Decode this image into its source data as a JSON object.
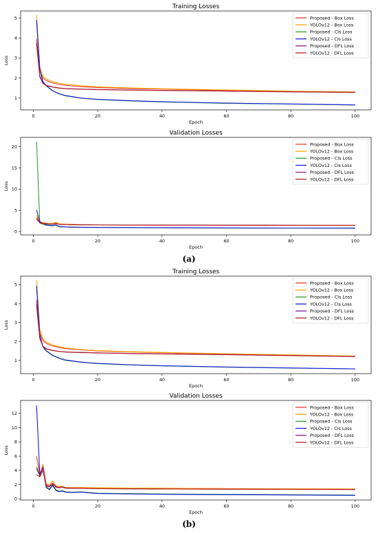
{
  "captions": [
    "(a)",
    "(b)"
  ],
  "chart_data": [
    {
      "type": "line",
      "title": "Training Losses",
      "xlabel": "Epoch",
      "ylabel": "Loss",
      "xlim": [
        -3.95,
        104.95
      ],
      "ylim": [
        0.4,
        5.35
      ],
      "xticks": [
        0,
        20,
        40,
        60,
        80,
        100
      ],
      "yticks": [
        1,
        2,
        3,
        4,
        5
      ],
      "legend": "top-right",
      "series": [
        {
          "name": "Proposed - Box Loss",
          "color": "#e8382a",
          "x": [
            1,
            2,
            3,
            4,
            6,
            8,
            10,
            15,
            20,
            30,
            40,
            60,
            80,
            100
          ],
          "y": [
            3.95,
            2.35,
            2.0,
            1.87,
            1.75,
            1.68,
            1.63,
            1.56,
            1.52,
            1.47,
            1.44,
            1.38,
            1.33,
            1.29
          ]
        },
        {
          "name": "YOLOv12 - Box Loss",
          "color": "#ffa500",
          "x": [
            1,
            2,
            3,
            4,
            6,
            8,
            10,
            15,
            20,
            30,
            40,
            60,
            80,
            100
          ],
          "y": [
            5.15,
            2.55,
            2.1,
            1.95,
            1.82,
            1.74,
            1.69,
            1.61,
            1.56,
            1.5,
            1.46,
            1.4,
            1.34,
            1.3
          ]
        },
        {
          "name": "Proposed - Cls Loss",
          "color": "#2ca02c",
          "x": [
            1,
            2,
            3,
            4,
            6,
            8,
            10,
            15,
            20,
            30,
            40,
            60,
            80,
            100
          ],
          "y": [
            4.85,
            2.4,
            1.8,
            1.6,
            1.35,
            1.2,
            1.1,
            0.98,
            0.92,
            0.85,
            0.8,
            0.73,
            0.69,
            0.64
          ]
        },
        {
          "name": "YOLOv12 - Cls Loss",
          "color": "#1a1adc",
          "x": [
            1,
            2,
            3,
            4,
            6,
            8,
            10,
            15,
            20,
            30,
            40,
            60,
            80,
            100
          ],
          "y": [
            4.9,
            2.45,
            1.82,
            1.62,
            1.36,
            1.21,
            1.12,
            0.99,
            0.93,
            0.86,
            0.81,
            0.74,
            0.7,
            0.65
          ]
        },
        {
          "name": "Proposed - DFL Loss",
          "color": "#8b1a8b",
          "x": [
            1,
            2,
            3,
            4,
            6,
            8,
            10,
            15,
            20,
            30,
            40,
            60,
            80,
            100
          ],
          "y": [
            3.75,
            2.1,
            1.75,
            1.63,
            1.55,
            1.5,
            1.47,
            1.44,
            1.42,
            1.4,
            1.38,
            1.35,
            1.31,
            1.28
          ]
        },
        {
          "name": "YOLOv12 - DFL Loss",
          "color": "#b22222",
          "x": [
            1,
            2,
            3,
            4,
            6,
            8,
            10,
            15,
            20,
            30,
            40,
            60,
            80,
            100
          ],
          "y": [
            3.7,
            2.05,
            1.72,
            1.61,
            1.54,
            1.49,
            1.46,
            1.43,
            1.41,
            1.39,
            1.37,
            1.34,
            1.3,
            1.27
          ]
        }
      ]
    },
    {
      "type": "line",
      "title": "Validation Losses",
      "xlabel": "Epoch",
      "ylabel": "Loss",
      "xlim": [
        -3.95,
        104.95
      ],
      "ylim": [
        -0.8,
        22.2
      ],
      "xticks": [
        0,
        20,
        40,
        60,
        80,
        100
      ],
      "yticks": [
        0,
        5,
        10,
        15,
        20
      ],
      "legend": "top-right",
      "series": [
        {
          "name": "Proposed - Box Loss",
          "color": "#e8382a",
          "x": [
            1,
            2,
            3,
            4,
            5,
            6,
            7,
            8,
            10,
            12,
            15,
            20,
            40,
            60,
            80,
            100
          ],
          "y": [
            3.4,
            2.3,
            2.0,
            1.9,
            1.85,
            1.8,
            2.0,
            1.75,
            1.7,
            1.65,
            1.6,
            1.55,
            1.5,
            1.45,
            1.43,
            1.42
          ]
        },
        {
          "name": "YOLOv12 - Box Loss",
          "color": "#ffa500",
          "x": [
            1,
            2,
            3,
            4,
            5,
            6,
            7,
            8,
            10,
            12,
            15,
            20,
            40,
            60,
            80,
            100
          ],
          "y": [
            3.9,
            2.4,
            2.1,
            2.0,
            1.9,
            1.9,
            2.2,
            1.8,
            1.75,
            1.7,
            1.62,
            1.57,
            1.5,
            1.46,
            1.44,
            1.43
          ]
        },
        {
          "name": "Proposed - Cls Loss",
          "color": "#2ca02c",
          "x": [
            1,
            2,
            3,
            4,
            5,
            6,
            7,
            8,
            10,
            12,
            15,
            20,
            40,
            60,
            80,
            100
          ],
          "y": [
            21.2,
            2.0,
            1.7,
            1.5,
            1.4,
            1.3,
            1.5,
            1.1,
            1.05,
            1.0,
            0.95,
            0.9,
            0.85,
            0.8,
            0.78,
            0.75
          ]
        },
        {
          "name": "YOLOv12 - Cls Loss",
          "color": "#1a1adc",
          "x": [
            1,
            2,
            3,
            4,
            5,
            6,
            7,
            8,
            10,
            12,
            15,
            20,
            40,
            60,
            80,
            100
          ],
          "y": [
            5.1,
            2.3,
            1.9,
            1.6,
            1.5,
            1.4,
            1.6,
            1.2,
            1.1,
            1.05,
            1.0,
            0.95,
            0.9,
            0.85,
            0.82,
            0.8
          ]
        },
        {
          "name": "Proposed - DFL Loss",
          "color": "#8b1a8b",
          "x": [
            1,
            2,
            3,
            4,
            5,
            6,
            7,
            8,
            10,
            12,
            15,
            20,
            40,
            60,
            80,
            100
          ],
          "y": [
            3.0,
            2.1,
            1.95,
            1.85,
            1.8,
            1.75,
            1.9,
            1.7,
            1.65,
            1.62,
            1.6,
            1.56,
            1.52,
            1.5,
            1.48,
            1.46
          ]
        },
        {
          "name": "YOLOv12 - DFL Loss",
          "color": "#b22222",
          "x": [
            1,
            2,
            3,
            4,
            5,
            6,
            7,
            8,
            10,
            12,
            15,
            20,
            40,
            60,
            80,
            100
          ],
          "y": [
            2.9,
            2.05,
            1.9,
            1.8,
            1.78,
            1.72,
            1.85,
            1.68,
            1.63,
            1.6,
            1.58,
            1.55,
            1.51,
            1.49,
            1.47,
            1.45
          ]
        }
      ]
    },
    {
      "type": "line",
      "title": "Training Losses",
      "xlabel": "Epoch",
      "ylabel": "Loss",
      "xlim": [
        -3.95,
        104.95
      ],
      "ylim": [
        0.3,
        5.45
      ],
      "xticks": [
        0,
        20,
        40,
        60,
        80,
        100
      ],
      "yticks": [
        1,
        2,
        3,
        4,
        5
      ],
      "legend": "top-right",
      "series": [
        {
          "name": "Proposed - Box Loss",
          "color": "#e8382a",
          "x": [
            1,
            2,
            3,
            4,
            6,
            8,
            10,
            15,
            20,
            30,
            40,
            60,
            80,
            100
          ],
          "y": [
            4.2,
            2.45,
            2.05,
            1.9,
            1.76,
            1.68,
            1.62,
            1.55,
            1.5,
            1.45,
            1.41,
            1.34,
            1.28,
            1.22
          ]
        },
        {
          "name": "YOLOv12 - Box Loss",
          "color": "#ffa500",
          "x": [
            1,
            2,
            3,
            4,
            6,
            8,
            10,
            15,
            20,
            30,
            40,
            60,
            80,
            100
          ],
          "y": [
            5.25,
            2.65,
            2.15,
            1.98,
            1.82,
            1.72,
            1.66,
            1.57,
            1.52,
            1.46,
            1.42,
            1.35,
            1.29,
            1.23
          ]
        },
        {
          "name": "Proposed - Cls Loss",
          "color": "#2ca02c",
          "x": [
            1,
            2,
            3,
            4,
            6,
            8,
            10,
            15,
            20,
            30,
            40,
            60,
            80,
            100
          ],
          "y": [
            4.9,
            2.3,
            1.7,
            1.5,
            1.25,
            1.1,
            1.0,
            0.9,
            0.83,
            0.76,
            0.71,
            0.64,
            0.59,
            0.55
          ]
        },
        {
          "name": "YOLOv12 - Cls Loss",
          "color": "#1a1adc",
          "x": [
            1,
            2,
            3,
            4,
            6,
            8,
            10,
            15,
            20,
            30,
            40,
            60,
            80,
            100
          ],
          "y": [
            4.95,
            2.35,
            1.72,
            1.52,
            1.27,
            1.12,
            1.02,
            0.91,
            0.84,
            0.77,
            0.72,
            0.65,
            0.6,
            0.55
          ]
        },
        {
          "name": "Proposed - DFL Loss",
          "color": "#8b1a8b",
          "x": [
            1,
            2,
            3,
            4,
            6,
            8,
            10,
            15,
            20,
            30,
            40,
            60,
            80,
            100
          ],
          "y": [
            4.0,
            2.2,
            1.75,
            1.62,
            1.53,
            1.48,
            1.45,
            1.42,
            1.4,
            1.37,
            1.35,
            1.31,
            1.26,
            1.21
          ]
        },
        {
          "name": "YOLOv12 - DFL Loss",
          "color": "#b22222",
          "x": [
            1,
            2,
            3,
            4,
            6,
            8,
            10,
            15,
            20,
            30,
            40,
            60,
            80,
            100
          ],
          "y": [
            3.9,
            2.15,
            1.72,
            1.6,
            1.52,
            1.47,
            1.44,
            1.41,
            1.39,
            1.36,
            1.34,
            1.3,
            1.25,
            1.2
          ]
        }
      ]
    },
    {
      "type": "line",
      "title": "Validation Losses",
      "xlabel": "Epoch",
      "ylabel": "Loss",
      "xlim": [
        -3.95,
        104.95
      ],
      "ylim": [
        -0.15,
        13.8
      ],
      "xticks": [
        0,
        20,
        40,
        60,
        80,
        100
      ],
      "yticks": [
        0,
        2,
        4,
        6,
        8,
        10,
        12
      ],
      "legend": "top-right",
      "series": [
        {
          "name": "Proposed - Box Loss",
          "color": "#e8382a",
          "x": [
            1,
            2,
            3,
            4,
            5,
            6,
            7,
            8,
            9,
            10,
            12,
            15,
            20,
            40,
            60,
            80,
            100
          ],
          "y": [
            6.0,
            3.5,
            4.8,
            2.0,
            2.0,
            2.5,
            1.8,
            1.7,
            1.8,
            1.6,
            1.6,
            1.6,
            1.55,
            1.5,
            1.45,
            1.42,
            1.4
          ]
        },
        {
          "name": "YOLOv12 - Box Loss",
          "color": "#ffa500",
          "x": [
            1,
            2,
            3,
            4,
            5,
            6,
            7,
            8,
            9,
            10,
            12,
            15,
            20,
            40,
            60,
            80,
            100
          ],
          "y": [
            4.6,
            3.4,
            4.7,
            2.1,
            2.0,
            2.5,
            1.9,
            1.7,
            1.8,
            1.6,
            1.6,
            1.6,
            1.55,
            1.5,
            1.45,
            1.42,
            1.4
          ]
        },
        {
          "name": "Proposed - Cls Loss",
          "color": "#2ca02c",
          "x": [
            1,
            2,
            3,
            4,
            5,
            6,
            7,
            8,
            9,
            10,
            12,
            15,
            20,
            40,
            60,
            80,
            100
          ],
          "y": [
            4.2,
            3.2,
            4.4,
            1.7,
            1.4,
            2.0,
            1.3,
            1.1,
            1.2,
            1.0,
            0.95,
            1.0,
            0.8,
            0.7,
            0.65,
            0.6,
            0.55
          ]
        },
        {
          "name": "YOLOv12 - Cls Loss",
          "color": "#1a1adc",
          "x": [
            1,
            2,
            3,
            4,
            5,
            6,
            7,
            8,
            9,
            10,
            12,
            15,
            20,
            40,
            60,
            80,
            100
          ],
          "y": [
            13.1,
            3.5,
            4.3,
            1.6,
            1.3,
            1.9,
            1.2,
            1.0,
            1.1,
            0.95,
            0.9,
            0.95,
            0.75,
            0.65,
            0.6,
            0.55,
            0.5
          ]
        },
        {
          "name": "Proposed - DFL Loss",
          "color": "#8b1a8b",
          "x": [
            1,
            2,
            3,
            4,
            5,
            6,
            7,
            8,
            9,
            10,
            12,
            15,
            20,
            40,
            60,
            80,
            100
          ],
          "y": [
            4.4,
            3.3,
            4.5,
            1.9,
            1.8,
            2.2,
            1.7,
            1.6,
            1.7,
            1.55,
            1.5,
            1.5,
            1.45,
            1.4,
            1.37,
            1.35,
            1.33
          ]
        },
        {
          "name": "YOLOv12 - DFL Loss",
          "color": "#b22222",
          "x": [
            1,
            2,
            3,
            4,
            5,
            6,
            7,
            8,
            9,
            10,
            12,
            15,
            20,
            40,
            60,
            80,
            100
          ],
          "y": [
            3.4,
            3.1,
            4.0,
            1.8,
            1.7,
            2.1,
            1.65,
            1.55,
            1.65,
            1.5,
            1.48,
            1.48,
            1.44,
            1.4,
            1.36,
            1.34,
            1.32
          ]
        }
      ]
    }
  ]
}
